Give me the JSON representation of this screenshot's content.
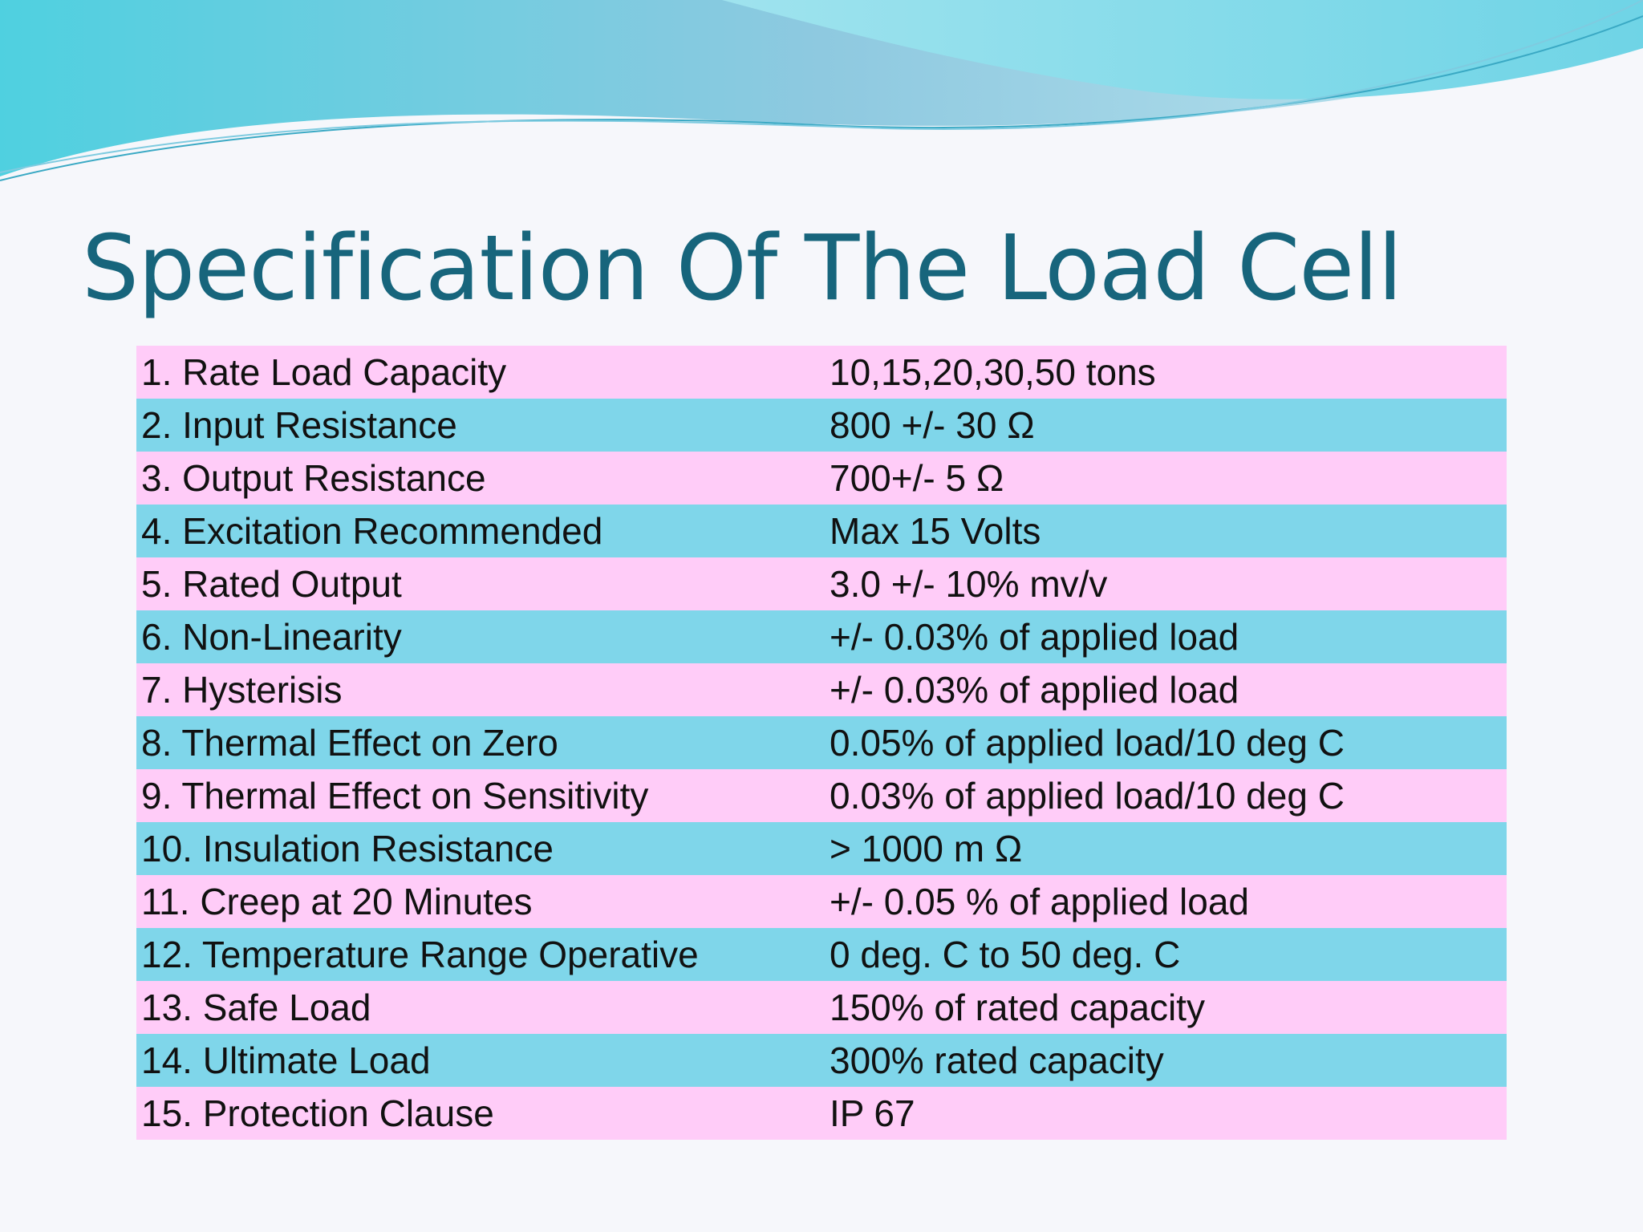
{
  "title": "Specification Of The Load Cell",
  "table": {
    "rows": [
      [
        "1. Rate Load Capacity",
        "10,15,20,30,50 tons"
      ],
      [
        "2. Input Resistance",
        "800 +/- 30 Ω"
      ],
      [
        "3. Output Resistance",
        "700+/- 5 Ω"
      ],
      [
        "4. Excitation Recommended",
        "Max 15 Volts"
      ],
      [
        "5. Rated Output",
        "3.0 +/- 10% mv/v"
      ],
      [
        "6. Non-Linearity",
        "+/- 0.03% of applied load"
      ],
      [
        "7. Hysterisis",
        "+/- 0.03% of applied load"
      ],
      [
        "8. Thermal Effect on Zero",
        "0.05% of applied load/10 deg C"
      ],
      [
        "9. Thermal Effect on Sensitivity",
        "0.03% of applied load/10 deg C"
      ],
      [
        "10. Insulation Resistance",
        "> 1000 m Ω"
      ],
      [
        "11. Creep at 20 Minutes",
        "+/- 0.05 % of applied load"
      ],
      [
        "12. Temperature Range Operative",
        "0 deg. C to 50 deg. C"
      ],
      [
        "13. Safe Load",
        "150% of rated capacity"
      ],
      [
        "14. Ultimate Load",
        "300% rated capacity"
      ],
      [
        "15. Protection Clause",
        "IP 67"
      ]
    ]
  }
}
